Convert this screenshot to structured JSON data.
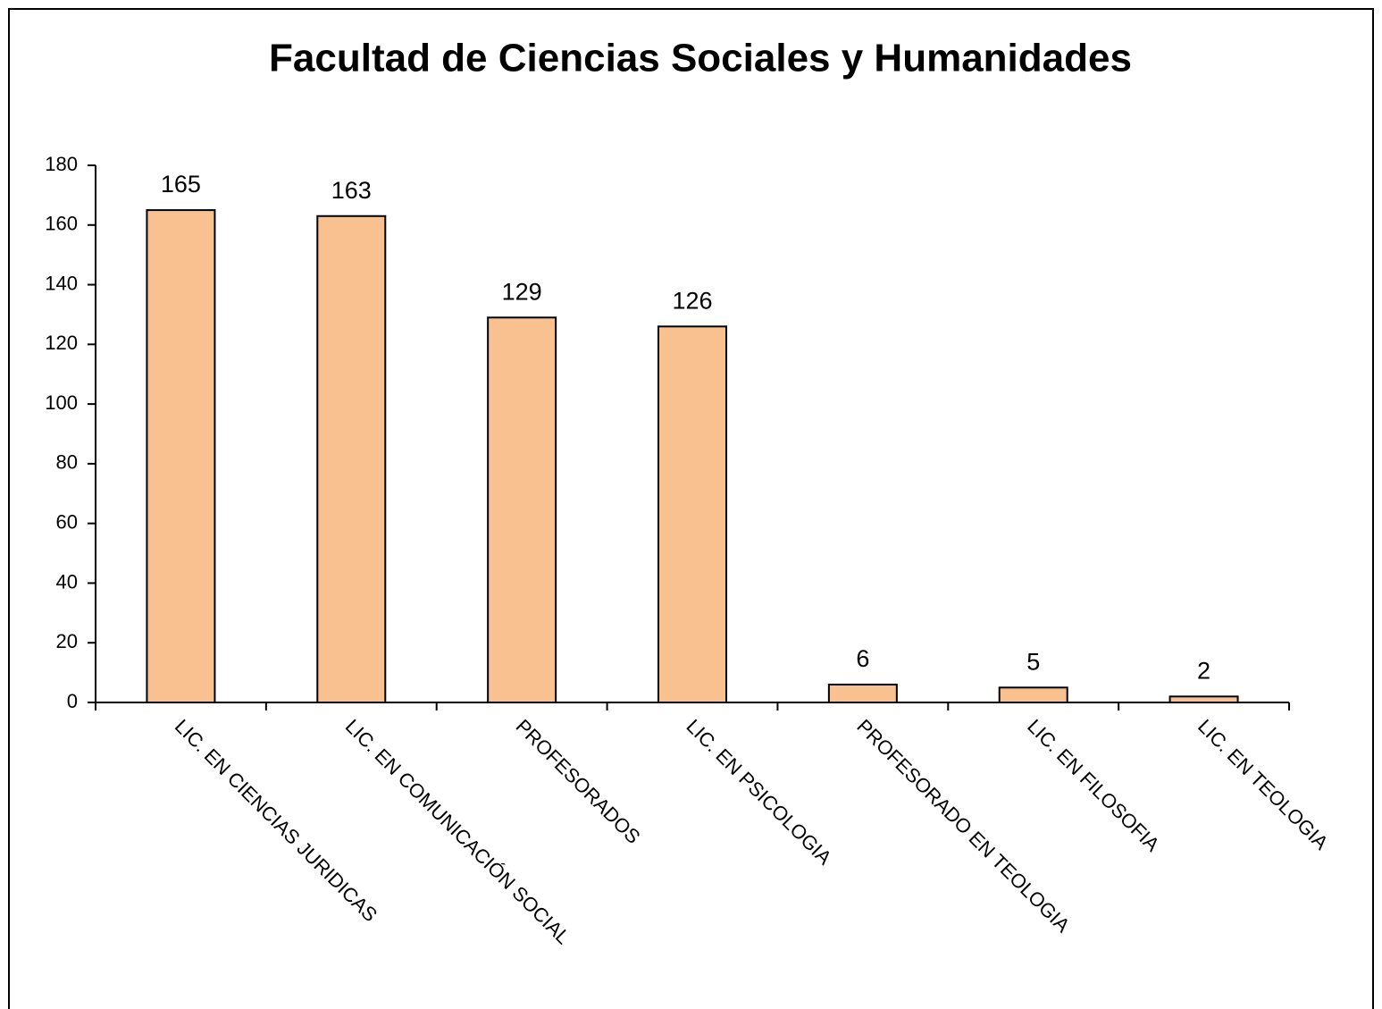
{
  "chart_data": {
    "type": "bar",
    "title": "Facultad de Ciencias Sociales y Humanidades",
    "categories": [
      "LIC. EN CIENCIAS JURIDICAS",
      "LIC. EN COMUNICACIÓN SOCIAL",
      "PROFESORADOS",
      "LIC. EN PSICOLOGIA",
      "PROFESORADO EN TEOLOGIA",
      "LIC. EN FILOSOFIA",
      "LIC. EN TEOLOGIA"
    ],
    "values": [
      165,
      163,
      129,
      126,
      6,
      5,
      2
    ],
    "color": "#f9c090",
    "ylim": [
      0,
      180
    ],
    "yticks": [
      0,
      20,
      40,
      60,
      80,
      100,
      120,
      140,
      160,
      180
    ],
    "grid": false
  }
}
